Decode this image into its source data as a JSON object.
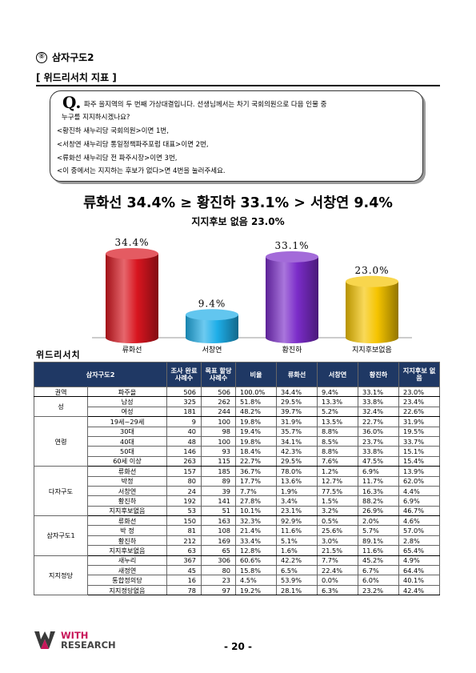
{
  "section": {
    "number": "⑧",
    "title": "삼자구도2"
  },
  "subheading": "[ 위드리서치 지표 ]",
  "question": {
    "mark": "Q.",
    "lines": [
      "파주 을지역의 두 번째 가상대결입니다. 선생님께서는 차기 국회의원으로 다음 인물 중",
      "누구를 지지하시겠나요?",
      "<황진하 새누리당 국회의원>이면 1번,",
      "<서창연 새누리당 통일정책파주포럼 대표>이면 2번,",
      "<류화선 새누리당 전 파주시장>이면 3번,",
      "<이 중에서는 지지하는 후보가 없다>면 4번을 눌러주세요."
    ]
  },
  "headline": "류화선 34.4% ≥ 황진하 33.1% > 서창연 9.4%",
  "subheadline": "지지후보 없음 23.0%",
  "chart_data": {
    "type": "bar",
    "categories": [
      "류화선",
      "서창연",
      "황진하",
      "지지후보없음"
    ],
    "values": [
      34.4,
      9.4,
      33.1,
      23.0
    ],
    "value_labels": [
      "34.4%",
      "9.4%",
      "33.1%",
      "23.0%"
    ],
    "colors": [
      "#d8151f",
      "#1eaee8",
      "#7b2cc9",
      "#f5c400"
    ],
    "title": "",
    "xlabel": "",
    "ylabel": "",
    "ylim": [
      0,
      40
    ],
    "grid": false,
    "legend": "none"
  },
  "chart_caption": "위드리서치",
  "table": {
    "headers": [
      "삼자구도2",
      "조사 완료 사례수",
      "목표 할당 사례수",
      "비율",
      "류화선",
      "서창연",
      "황진하",
      "지지후보 없음"
    ],
    "groups": [
      {
        "name": "권역",
        "rows": [
          [
            "파주을",
            "506",
            "506",
            "100.0%",
            "34.4%",
            "9.4%",
            "33.1%",
            "23.0%"
          ]
        ]
      },
      {
        "name": "성",
        "rows": [
          [
            "남성",
            "325",
            "262",
            "51.8%",
            "29.5%",
            "13.3%",
            "33.8%",
            "23.4%"
          ],
          [
            "여성",
            "181",
            "244",
            "48.2%",
            "39.7%",
            "5.2%",
            "32.4%",
            "22.6%"
          ]
        ]
      },
      {
        "name": "연령",
        "rows": [
          [
            "19세~29세",
            "9",
            "100",
            "19.8%",
            "31.9%",
            "13.5%",
            "22.7%",
            "31.9%"
          ],
          [
            "30대",
            "40",
            "98",
            "19.4%",
            "35.7%",
            "8.8%",
            "36.0%",
            "19.5%"
          ],
          [
            "40대",
            "48",
            "100",
            "19.8%",
            "34.1%",
            "8.5%",
            "23.7%",
            "33.7%"
          ],
          [
            "50대",
            "146",
            "93",
            "18.4%",
            "42.3%",
            "8.8%",
            "33.8%",
            "15.1%"
          ],
          [
            "60세 이상",
            "263",
            "115",
            "22.7%",
            "29.5%",
            "7.6%",
            "47.5%",
            "15.4%"
          ]
        ]
      },
      {
        "name": "다자구도",
        "rows": [
          [
            "류화선",
            "157",
            "185",
            "36.7%",
            "78.0%",
            "1.2%",
            "6.9%",
            "13.9%"
          ],
          [
            "박정",
            "80",
            "89",
            "17.7%",
            "13.6%",
            "12.7%",
            "11.7%",
            "62.0%"
          ],
          [
            "서창연",
            "24",
            "39",
            "7.7%",
            "1.9%",
            "77.5%",
            "16.3%",
            "4.4%"
          ],
          [
            "황진하",
            "192",
            "141",
            "27.8%",
            "3.4%",
            "1.5%",
            "88.2%",
            "6.9%"
          ],
          [
            "지지후보없음",
            "53",
            "51",
            "10.1%",
            "23.1%",
            "3.2%",
            "26.9%",
            "46.7%"
          ]
        ]
      },
      {
        "name": "삼자구도1",
        "rows": [
          [
            "류화선",
            "150",
            "163",
            "32.3%",
            "92.9%",
            "0.5%",
            "2.0%",
            "4.6%"
          ],
          [
            "박 정",
            "81",
            "108",
            "21.4%",
            "11.6%",
            "25.6%",
            "5.7%",
            "57.0%"
          ],
          [
            "황진하",
            "212",
            "169",
            "33.4%",
            "5.1%",
            "3.0%",
            "89.1%",
            "2.8%"
          ],
          [
            "지지후보없음",
            "63",
            "65",
            "12.8%",
            "1.6%",
            "21.5%",
            "11.6%",
            "65.4%"
          ]
        ]
      },
      {
        "name": "지지정당",
        "rows": [
          [
            "새누리",
            "367",
            "306",
            "60.6%",
            "42.2%",
            "7.7%",
            "45.2%",
            "4.9%"
          ],
          [
            "새정연",
            "45",
            "80",
            "15.8%",
            "6.5%",
            "22.4%",
            "6.7%",
            "64.4%"
          ],
          [
            "통합정의당",
            "16",
            "23",
            "4.5%",
            "53.9%",
            "0.0%",
            "6.0%",
            "40.1%"
          ],
          [
            "지지정당없음",
            "78",
            "97",
            "19.2%",
            "28.1%",
            "6.3%",
            "23.2%",
            "42.4%"
          ]
        ]
      }
    ]
  },
  "logo": {
    "line1": "WITH",
    "line2": "RESEARCH"
  },
  "page_number": "- 20 -"
}
